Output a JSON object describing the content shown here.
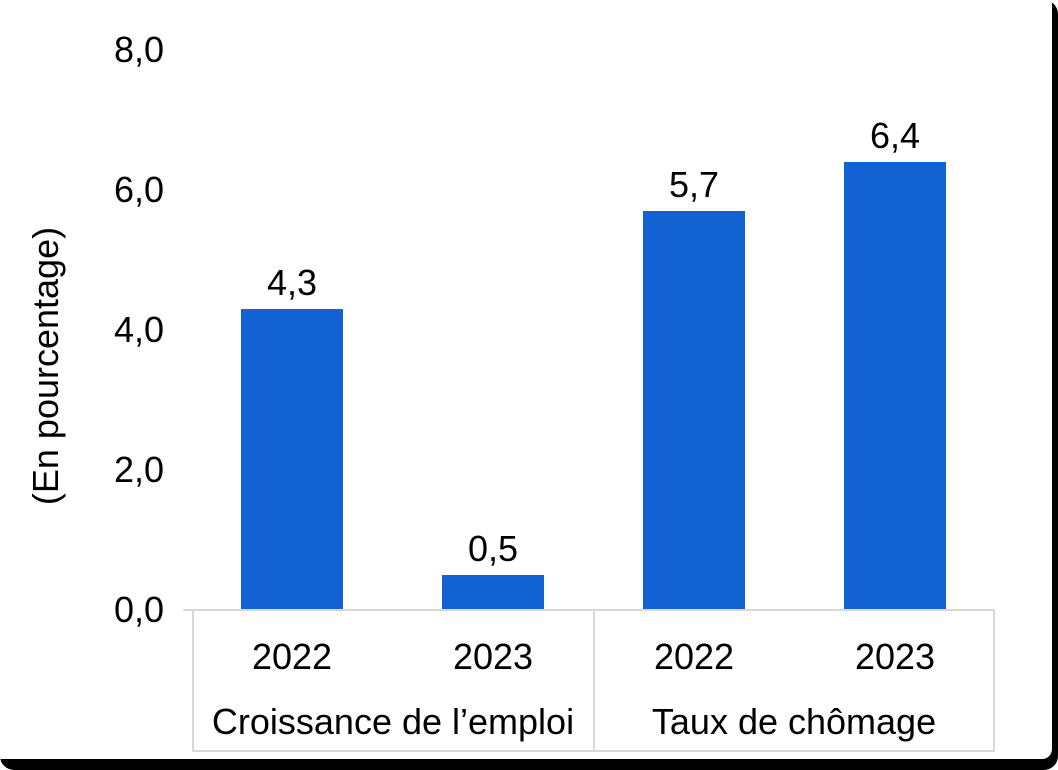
{
  "window": {
    "frame_color": "#000000",
    "page_color": "#ffffff"
  },
  "chart_data": {
    "type": "bar",
    "title": "",
    "xlabel": "",
    "ylabel": "(En pourcentage)",
    "ylim": [
      0,
      8
    ],
    "grid": false,
    "legend": false,
    "bar_color": "#1262D4",
    "axis_color": "#D9D9D9",
    "yticks": [
      {
        "value": 8,
        "label": "8,0"
      },
      {
        "value": 6,
        "label": "6,0"
      },
      {
        "value": 4,
        "label": "4,0"
      },
      {
        "value": 2,
        "label": "2,0"
      },
      {
        "value": 0,
        "label": "0,0"
      }
    ],
    "groups": [
      {
        "label": "Croissance de l’emploi",
        "categories": [
          "2022",
          "2023"
        ],
        "values": [
          4.3,
          0.5
        ],
        "value_labels": [
          "4,3",
          "0,5"
        ]
      },
      {
        "label": "Taux de chômage",
        "categories": [
          "2022",
          "2023"
        ],
        "values": [
          5.7,
          6.4
        ],
        "value_labels": [
          "5,7",
          "6,4"
        ]
      }
    ]
  }
}
